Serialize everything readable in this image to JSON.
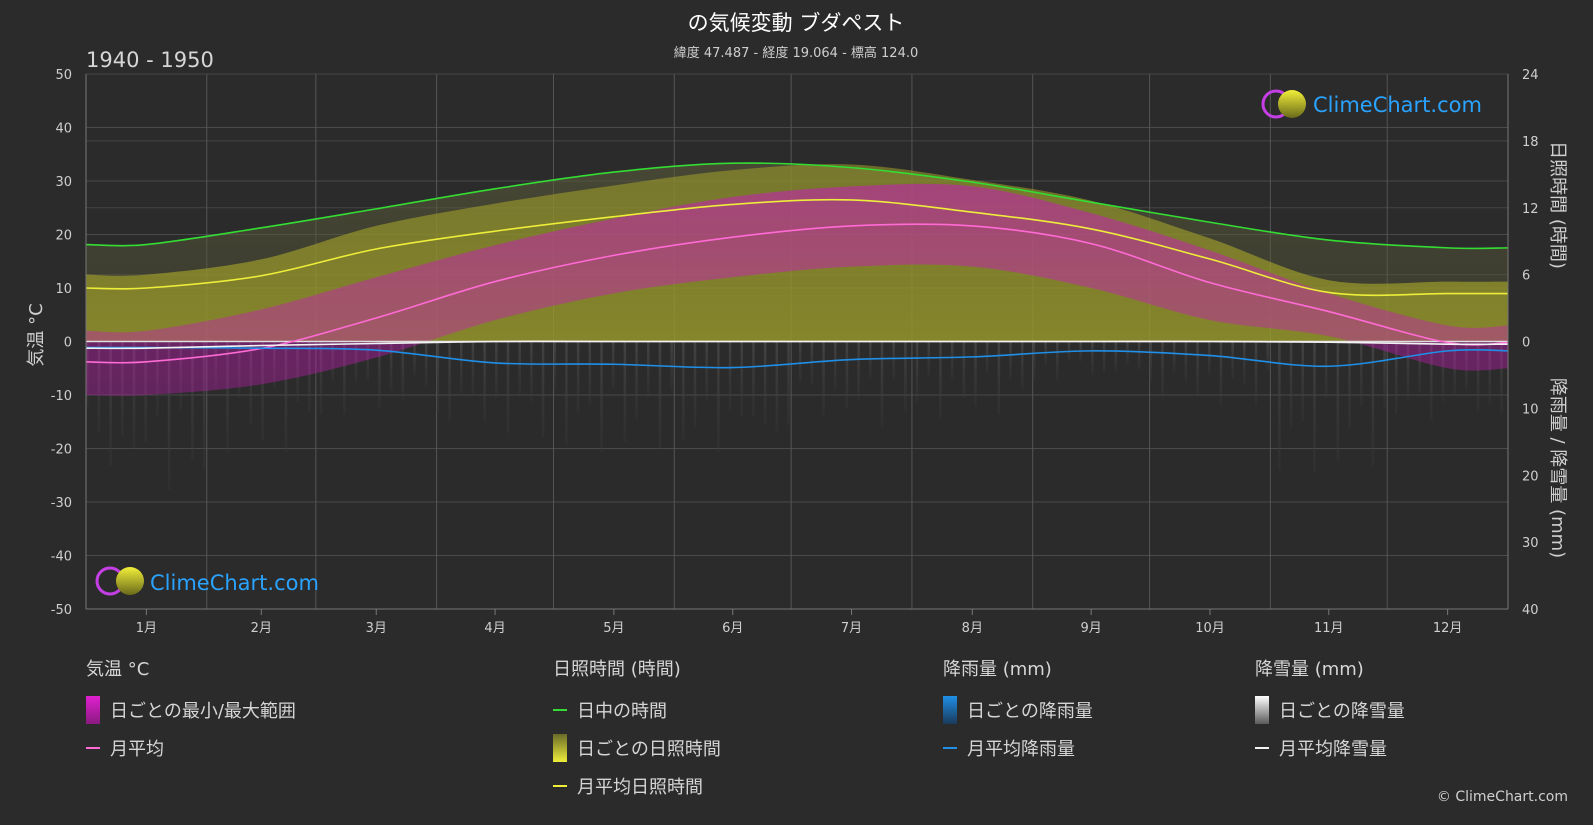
{
  "title": "の気候変動 ブダペスト",
  "subtitle": "緯度 47.487 - 経度 19.064 - 標高 124.0",
  "period": "1940 - 1950",
  "logo_text": "ClimeChart.com",
  "copyright": "© ClimeChart.com",
  "colors": {
    "background": "#2b2b2b",
    "temp_range": "#d11fbf",
    "temp_avg": "#ff6ad5",
    "daylight": "#33dd33",
    "sunshine_daily": "#a6a62a",
    "sunshine_avg": "#eded3a",
    "rain_daily": "#1f6fb3",
    "rain_avg": "#1f8fe8",
    "snow_daily": "#9a9a9a",
    "snow_avg": "#f2f2f2"
  },
  "chart_data": {
    "type": "line",
    "x_ticks": [
      "1月",
      "2月",
      "3月",
      "4月",
      "5月",
      "6月",
      "7月",
      "8月",
      "9月",
      "10月",
      "11月",
      "12月"
    ],
    "y_left": {
      "label": "気温 °C",
      "range": [
        -50,
        50
      ],
      "ticks": [
        50,
        40,
        30,
        20,
        10,
        0,
        -10,
        -20,
        -30,
        -40,
        -50
      ]
    },
    "y_right_top": {
      "label": "日照時間 (時間)",
      "range": [
        0,
        24
      ],
      "ticks": [
        24,
        18,
        12,
        6,
        0
      ]
    },
    "y_right_bottom": {
      "label": "降雨量 / 降雪量 (mm)",
      "range": [
        0,
        40
      ],
      "ticks": [
        10,
        20,
        30,
        40
      ]
    },
    "grid": true,
    "monthly": {
      "daylight_hours": [
        8.7,
        10.2,
        11.9,
        13.7,
        15.2,
        16.0,
        15.6,
        14.3,
        12.5,
        10.7,
        9.1,
        8.4
      ],
      "sunshine_hours": [
        4.8,
        5.9,
        8.3,
        9.9,
        11.2,
        12.3,
        12.7,
        11.6,
        10.1,
        7.4,
        4.4,
        4.3
      ],
      "temp_avg_c": [
        -3.8,
        -1.3,
        4.4,
        11.2,
        16.1,
        19.5,
        21.6,
        21.6,
        18.3,
        11.0,
        5.6,
        -0.2
      ],
      "temp_max_c": [
        2,
        6,
        12,
        18,
        23,
        27,
        29,
        29,
        24,
        17,
        9,
        3
      ],
      "temp_min_c": [
        -10,
        -8,
        -3,
        4,
        9,
        12,
        14,
        14,
        10,
        4,
        1,
        -5
      ],
      "rain_avg_mm": [
        0.9,
        1.0,
        1.3,
        3.2,
        3.4,
        3.9,
        2.7,
        2.3,
        1.4,
        2.1,
        3.7,
        1.4
      ],
      "snow_avg_mm": [
        1.0,
        0.6,
        0.3,
        0.0,
        0.0,
        0.0,
        0.0,
        0.0,
        0.0,
        0.0,
        0.1,
        0.4
      ]
    }
  },
  "legend": {
    "temperature": {
      "heading": "気温 °C",
      "range_label": "日ごとの最小/最大範囲",
      "avg_label": "月平均"
    },
    "sunshine": {
      "heading": "日照時間 (時間)",
      "daylight_label": "日中の時間",
      "daily_label": "日ごとの日照時間",
      "avg_label": "月平均日照時間"
    },
    "rain": {
      "heading": "降雨量 (mm)",
      "daily_label": "日ごとの降雨量",
      "avg_label": "月平均降雨量"
    },
    "snow": {
      "heading": "降雪量 (mm)",
      "daily_label": "日ごとの降雪量",
      "avg_label": "月平均降雪量"
    }
  }
}
